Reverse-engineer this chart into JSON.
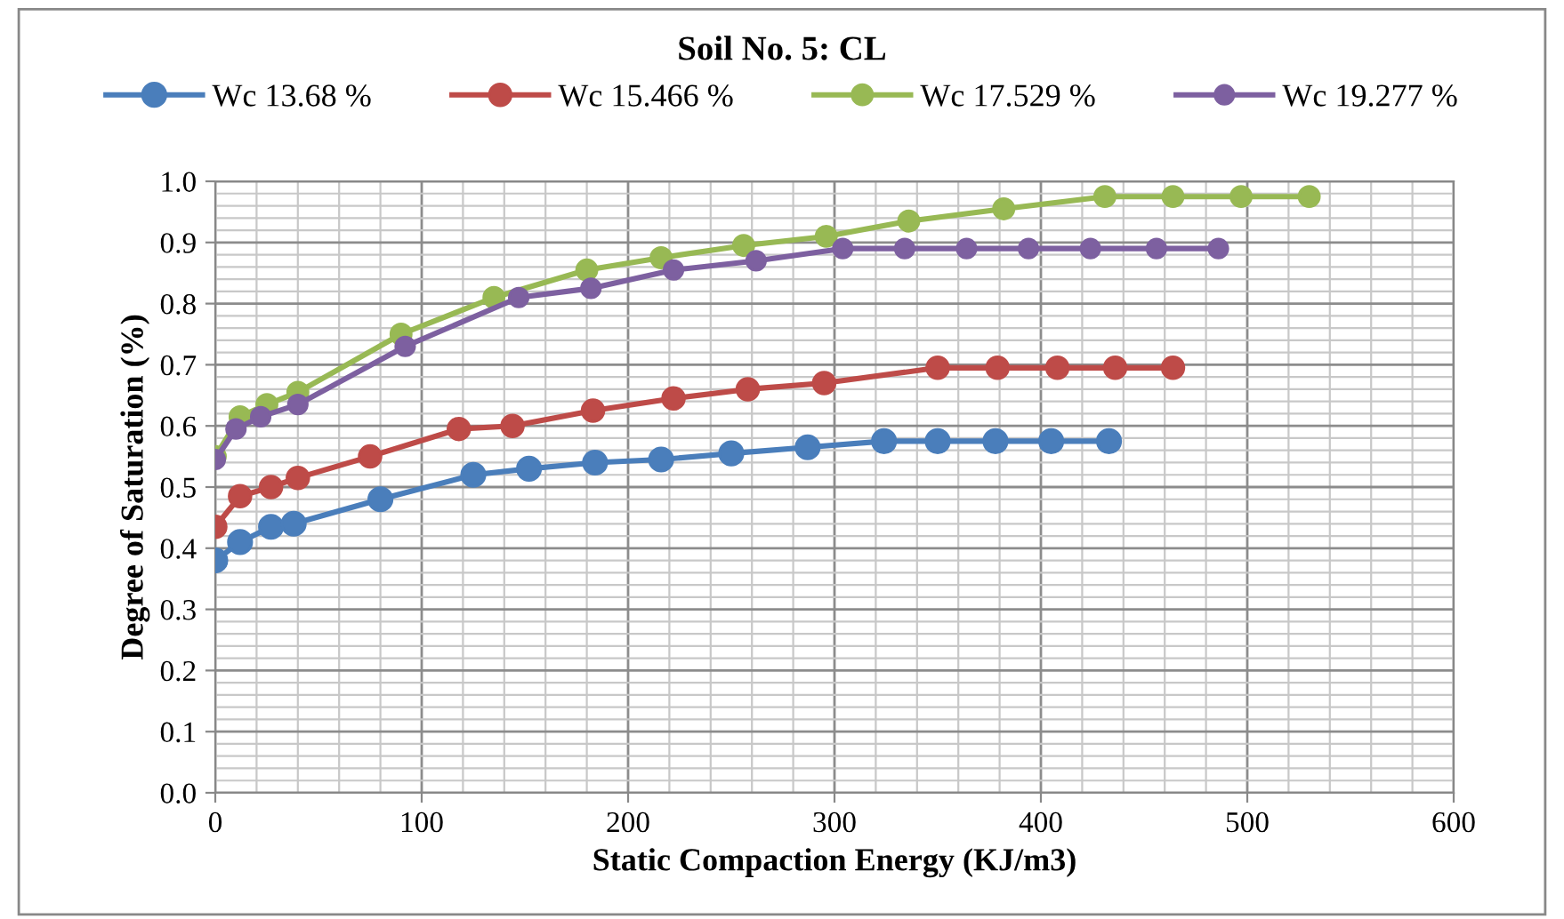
{
  "chart_data": {
    "type": "line",
    "title": "Soil No. 5: CL",
    "xlabel": "Static Compaction Energy (KJ/m3)",
    "ylabel": "Degree of Saturation (%)",
    "xlim": [
      0,
      600
    ],
    "xticks": [
      0,
      100,
      200,
      300,
      400,
      500,
      600
    ],
    "ylim": [
      0,
      1
    ],
    "yticks": [
      {
        "value": 0,
        "label": "0.0"
      },
      {
        "value": 0.1,
        "label": "0.1"
      },
      {
        "value": 0.2,
        "label": "0.2"
      },
      {
        "value": 0.3,
        "label": "0.3"
      },
      {
        "value": 0.4,
        "label": "0.4"
      },
      {
        "value": 0.5,
        "label": "0.5"
      },
      {
        "value": 0.6,
        "label": "0.6"
      },
      {
        "value": 0.7,
        "label": "0.7"
      },
      {
        "value": 0.8,
        "label": "0.8"
      },
      {
        "value": 0.9,
        "label": "0.9"
      },
      {
        "value": 1,
        "label": "1.0"
      }
    ],
    "grid": true,
    "legend": "top",
    "marker": "circle",
    "line_style": "solid",
    "series": [
      {
        "name": "Wc 13.68 %",
        "color": "#4a7ebb",
        "x": [
          0,
          12,
          27,
          38,
          80,
          125,
          152,
          184,
          216,
          250,
          287,
          324,
          350,
          378,
          405,
          433
        ],
        "values": [
          0.38,
          0.41,
          0.435,
          0.44,
          0.48,
          0.52,
          0.53,
          0.54,
          0.545,
          0.555,
          0.565,
          0.575,
          0.575,
          0.575,
          0.575,
          0.575
        ]
      },
      {
        "name": "Wc 15.466 %",
        "color": "#be4b48",
        "x": [
          0,
          12,
          27,
          40,
          75,
          118,
          144,
          183,
          222,
          258,
          295,
          350,
          379,
          408,
          436,
          464
        ],
        "values": [
          0.435,
          0.485,
          0.5,
          0.515,
          0.55,
          0.595,
          0.6,
          0.625,
          0.645,
          0.66,
          0.67,
          0.695,
          0.695,
          0.695,
          0.695,
          0.695
        ]
      },
      {
        "name": "Wc 17.529 %",
        "color": "#98b954",
        "x": [
          0,
          12,
          25,
          40,
          90,
          135,
          180,
          216,
          256,
          296,
          336,
          382,
          431,
          464,
          497,
          530
        ],
        "values": [
          0.55,
          0.615,
          0.635,
          0.655,
          0.75,
          0.81,
          0.855,
          0.875,
          0.895,
          0.91,
          0.935,
          0.955,
          0.975,
          0.975,
          0.975,
          0.975
        ]
      },
      {
        "name": "Wc 19.277 %",
        "color": "#7d60a0",
        "x": [
          0,
          10,
          22,
          40,
          92,
          147,
          182,
          222,
          262,
          304,
          334,
          364,
          394,
          424,
          456,
          486
        ],
        "values": [
          0.545,
          0.595,
          0.615,
          0.635,
          0.73,
          0.81,
          0.825,
          0.855,
          0.87,
          0.89,
          0.89,
          0.89,
          0.89,
          0.89,
          0.89,
          0.89
        ]
      }
    ]
  }
}
